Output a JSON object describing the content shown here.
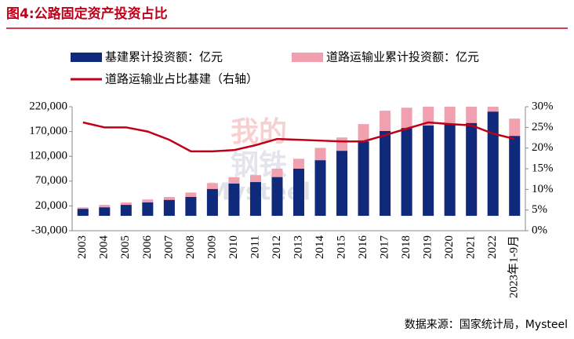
{
  "chart_data": {
    "type": "bar_line",
    "title": "图4:公路固定资产投资占比",
    "source": "数据来源：国家统计局，Mysteel",
    "watermark": [
      "我的",
      "钢铁",
      "Mysteel"
    ],
    "categories": [
      "2003",
      "2004",
      "2005",
      "2006",
      "2007",
      "2008",
      "2009",
      "2010",
      "2011",
      "2012",
      "2013",
      "2014",
      "2015",
      "2016",
      "2017",
      "2018",
      "2019",
      "2020",
      "2021",
      "2022",
      "2023年1-9月"
    ],
    "series": [
      {
        "name": "基建累计投资额：亿元",
        "color": "#0f2a7a",
        "kind": "bar",
        "values": [
          14000,
          17000,
          22000,
          27000,
          32000,
          38000,
          54000,
          65000,
          68000,
          78000,
          95000,
          112000,
          131000,
          150000,
          171000,
          177000,
          182000,
          185000,
          187000,
          210000,
          161000
        ]
      },
      {
        "name": "道路运输业累计投资额：亿元",
        "color": "#f0a0ae",
        "kind": "bar",
        "values": [
          17000,
          22000,
          27000,
          33000,
          38000,
          47000,
          66000,
          78000,
          82000,
          95000,
          115000,
          137000,
          158000,
          185000,
          212000,
          218000,
          220000,
          220000,
          220000,
          220000,
          196000
        ]
      },
      {
        "name": "道路运输业占比基建（右轴）",
        "color": "#c00018",
        "kind": "line",
        "axis": "y2",
        "values": [
          26.2,
          25,
          25,
          24,
          22,
          19.2,
          19.2,
          19.5,
          20.7,
          22.2,
          22,
          21.8,
          21.6,
          21.6,
          23.1,
          24.7,
          26.2,
          25.8,
          25.5,
          23.5,
          22.2
        ]
      }
    ],
    "ylim": [
      -30000,
      220000
    ],
    "yticks": [
      {
        "value": -30000,
        "label": "-30,000"
      },
      {
        "value": 20000,
        "label": "20,000"
      },
      {
        "value": 70000,
        "label": "70,000"
      },
      {
        "value": 120000,
        "label": "120,000"
      },
      {
        "value": 170000,
        "label": "170,000"
      },
      {
        "value": 220000,
        "label": "220,000"
      }
    ],
    "y2lim": [
      0,
      30
    ],
    "y2ticks": [
      {
        "value": 0,
        "label": "0%"
      },
      {
        "value": 5,
        "label": "5%"
      },
      {
        "value": 10,
        "label": "10%"
      },
      {
        "value": 15,
        "label": "15%"
      },
      {
        "value": 20,
        "label": "20%"
      },
      {
        "value": 25,
        "label": "25%"
      },
      {
        "value": 30,
        "label": "30%"
      }
    ]
  }
}
